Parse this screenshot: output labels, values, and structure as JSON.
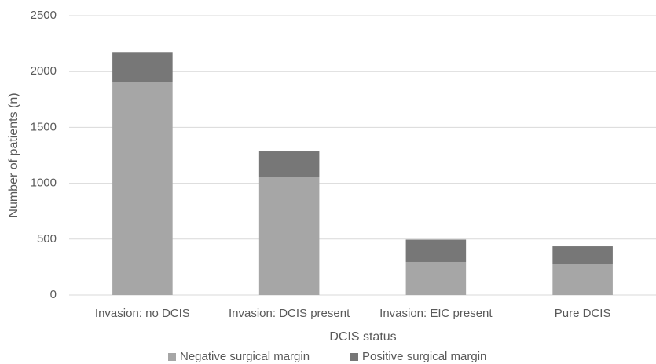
{
  "chart_data": {
    "type": "stacked_bar",
    "x_label": "DCIS status",
    "y_label": "Number of patients (n)",
    "categories": [
      "Invasion: no DCIS",
      "Invasion: DCIS present",
      "Invasion: EIC present",
      "Pure DCIS"
    ],
    "series": [
      {
        "name": "Negative surgical margin",
        "color": "#a6a6a6",
        "values": [
          1910,
          1055,
          295,
          275
        ]
      },
      {
        "name": "Positive surgical margin",
        "color": "#777777",
        "values": [
          265,
          230,
          200,
          160
        ]
      }
    ],
    "ylim": [
      0,
      2500
    ],
    "yticks": [
      0,
      500,
      1000,
      1500,
      2000,
      2500
    ],
    "grid": true,
    "legend": "bottom"
  }
}
